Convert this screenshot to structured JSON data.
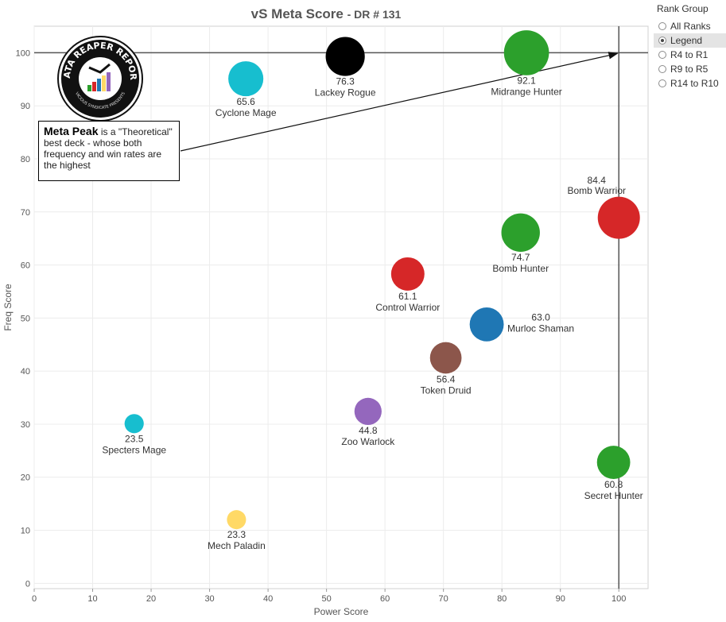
{
  "title": "vS Meta Score",
  "subtitle": "- DR # 131",
  "rank_group": {
    "header": "Rank Group",
    "options": [
      "All Ranks",
      "Legend",
      "R4 to R1",
      "R9 to R5",
      "R14 to R10"
    ],
    "selected": "Legend"
  },
  "note": {
    "bold": "Meta Peak",
    "text": "is a \"Theoretical\" best deck - whose both frequency and win rates are the highest"
  },
  "logo": {
    "text": "DATA REAPER REPORT",
    "subtext": "VICIOUS SYNDICATE PRESENTS"
  },
  "chart_data": {
    "type": "scatter",
    "title": "vS Meta Score",
    "xlabel": "Power Score",
    "ylabel": "Freq Score",
    "xlim": [
      0,
      105
    ],
    "ylim": [
      -1,
      105
    ],
    "xticks": [
      0,
      10,
      20,
      30,
      40,
      50,
      60,
      70,
      80,
      90,
      100
    ],
    "yticks": [
      0,
      10,
      20,
      30,
      40,
      50,
      60,
      70,
      80,
      90,
      100
    ],
    "grid": true,
    "meta_peak": {
      "x": 100,
      "y": 100
    },
    "points": [
      {
        "name": "Lackey Rogue",
        "score": "76.3",
        "x": 53.2,
        "y": 99.3,
        "size": 76.3,
        "color": "#000000",
        "label": "below"
      },
      {
        "name": "Midrange Hunter",
        "score": "92.1",
        "x": 84.2,
        "y": 100,
        "size": 92.1,
        "color": "#2ca02c",
        "label": "below"
      },
      {
        "name": "Cyclone Mage",
        "score": "65.6",
        "x": 36.2,
        "y": 95.1,
        "size": 65.6,
        "color": "#17becf",
        "label": "below"
      },
      {
        "name": "Bomb Warrior",
        "score": "84.4",
        "x": 100,
        "y": 68.9,
        "size": 84.4,
        "color": "#d62728",
        "label": "above-left"
      },
      {
        "name": "Bomb Hunter",
        "score": "74.7",
        "x": 83.2,
        "y": 66.1,
        "size": 74.7,
        "color": "#2ca02c",
        "label": "below"
      },
      {
        "name": "Control Warrior",
        "score": "61.1",
        "x": 63.9,
        "y": 58.3,
        "size": 61.1,
        "color": "#d62728",
        "label": "below"
      },
      {
        "name": "Murloc Shaman",
        "score": "63.0",
        "x": 77.4,
        "y": 48.8,
        "size": 63.0,
        "color": "#1f77b4",
        "label": "right"
      },
      {
        "name": "Token Druid",
        "score": "56.4",
        "x": 70.4,
        "y": 42.5,
        "size": 56.4,
        "color": "#8c564b",
        "label": "below"
      },
      {
        "name": "Zoo Warlock",
        "score": "44.8",
        "x": 57.1,
        "y": 32.4,
        "size": 44.8,
        "color": "#9467bd",
        "label": "below"
      },
      {
        "name": "Specters Mage",
        "score": "23.5",
        "x": 17.1,
        "y": 30.1,
        "size": 23.5,
        "color": "#17becf",
        "label": "below"
      },
      {
        "name": "Secret Hunter",
        "score": "60.8",
        "x": 99.1,
        "y": 22.8,
        "size": 60.8,
        "color": "#2ca02c",
        "label": "below"
      },
      {
        "name": "Mech Paladin",
        "score": "23.3",
        "x": 34.6,
        "y": 12.0,
        "size": 23.3,
        "color": "#ffd966",
        "label": "below"
      }
    ]
  }
}
